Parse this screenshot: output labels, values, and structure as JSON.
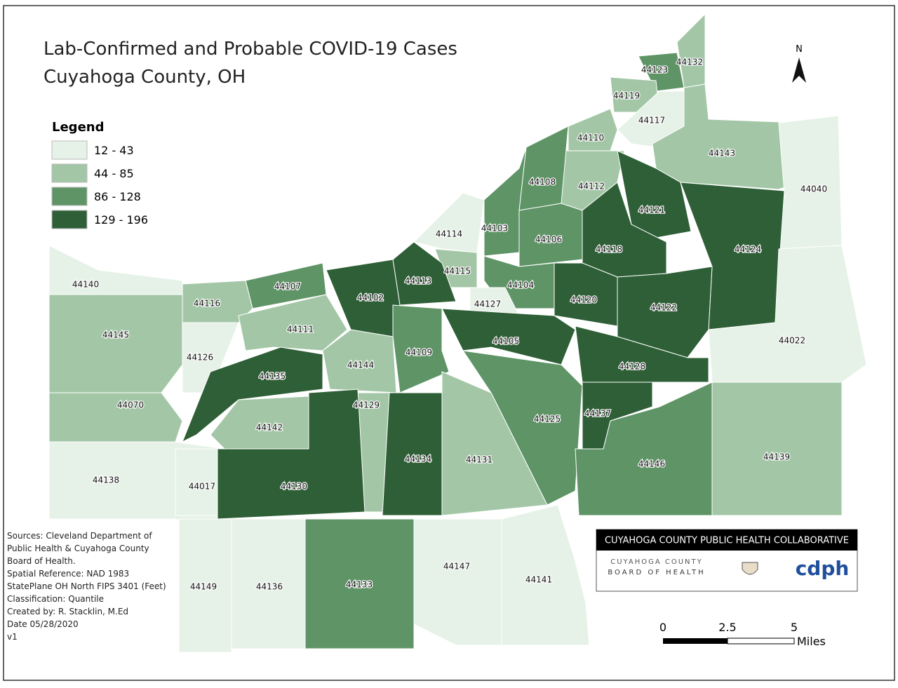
{
  "title": [
    "Lab-Confirmed and Probable COVID-19 Cases",
    "Cuyahoga County, OH"
  ],
  "north": "N",
  "legend": {
    "title": "Legend",
    "classes": [
      {
        "label": "12 - 43",
        "color": "#e6f2e7"
      },
      {
        "label": "44 - 85",
        "color": "#a3c7a6"
      },
      {
        "label": "86 - 128",
        "color": "#5f9466"
      },
      {
        "label": "129 - 196",
        "color": "#2e5f36"
      }
    ]
  },
  "regions": [
    {
      "zip": "44132",
      "class": 1
    },
    {
      "zip": "44123",
      "class": 2
    },
    {
      "zip": "44119",
      "class": 1
    },
    {
      "zip": "44117",
      "class": 0
    },
    {
      "zip": "44110",
      "class": 1
    },
    {
      "zip": "44143",
      "class": 1
    },
    {
      "zip": "44040",
      "class": 0
    },
    {
      "zip": "44112",
      "class": 1
    },
    {
      "zip": "44108",
      "class": 2
    },
    {
      "zip": "44121",
      "class": 3
    },
    {
      "zip": "44124",
      "class": 3
    },
    {
      "zip": "44114",
      "class": 0
    },
    {
      "zip": "44103",
      "class": 2
    },
    {
      "zip": "44106",
      "class": 2
    },
    {
      "zip": "44118",
      "class": 3
    },
    {
      "zip": "44115",
      "class": 1
    },
    {
      "zip": "44113",
      "class": 3
    },
    {
      "zip": "44102",
      "class": 3
    },
    {
      "zip": "44107",
      "class": 2
    },
    {
      "zip": "44104",
      "class": 2
    },
    {
      "zip": "44127",
      "class": 0
    },
    {
      "zip": "44120",
      "class": 3
    },
    {
      "zip": "44122",
      "class": 3
    },
    {
      "zip": "44140",
      "class": 0
    },
    {
      "zip": "44116",
      "class": 1
    },
    {
      "zip": "44145",
      "class": 1
    },
    {
      "zip": "44111",
      "class": 1
    },
    {
      "zip": "44105",
      "class": 3
    },
    {
      "zip": "44109",
      "class": 2
    },
    {
      "zip": "44126",
      "class": 0
    },
    {
      "zip": "44144",
      "class": 1
    },
    {
      "zip": "44128",
      "class": 3
    },
    {
      "zip": "44135",
      "class": 3
    },
    {
      "zip": "44125",
      "class": 2
    },
    {
      "zip": "44137",
      "class": 3
    },
    {
      "zip": "44070",
      "class": 1
    },
    {
      "zip": "44129",
      "class": 1
    },
    {
      "zip": "44142",
      "class": 1
    },
    {
      "zip": "44134",
      "class": 3
    },
    {
      "zip": "44131",
      "class": 1
    },
    {
      "zip": "44146",
      "class": 2
    },
    {
      "zip": "44139",
      "class": 1
    },
    {
      "zip": "44022",
      "class": 0
    },
    {
      "zip": "44138",
      "class": 0
    },
    {
      "zip": "44017",
      "class": 0
    },
    {
      "zip": "44130",
      "class": 3
    },
    {
      "zip": "44149",
      "class": 0
    },
    {
      "zip": "44136",
      "class": 0
    },
    {
      "zip": "44133",
      "class": 2
    },
    {
      "zip": "44147",
      "class": 0
    },
    {
      "zip": "44141",
      "class": 0
    }
  ],
  "sources": [
    "Sources: Cleveland Department of",
    "Public Health & Cuyahoga County",
    "Board of Health.",
    "Spatial Reference: NAD 1983",
    "StatePlane OH North FIPS 3401 (Feet)",
    "Classification: Quantile",
    "Created by: R. Stacklin, M.Ed",
    "Date 05/28/2020",
    "v1"
  ],
  "logo": {
    "banner": "CUYAHOGA COUNTY PUBLIC HEALTH COLLABORATIVE",
    "board_line1": "CUYAHOGA COUNTY",
    "board_line2": "BOARD OF HEALTH",
    "cdph": "cdph"
  },
  "scale": {
    "ticks": [
      "0",
      "2.5",
      "5"
    ],
    "unit": "Miles"
  }
}
